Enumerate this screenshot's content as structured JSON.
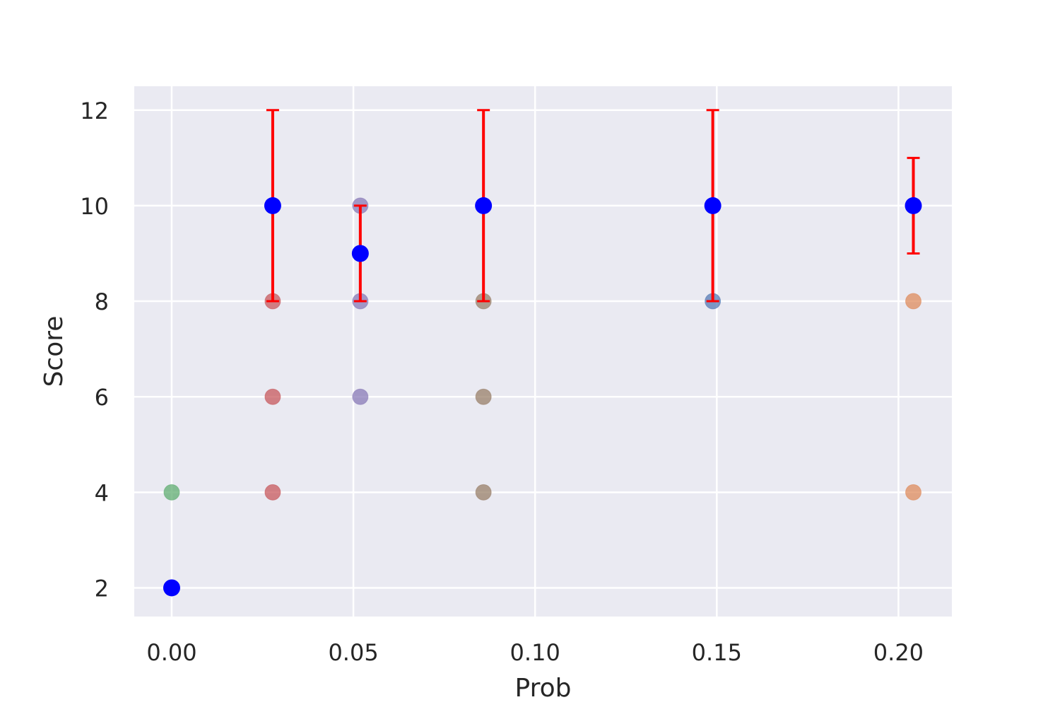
{
  "chart_data": {
    "type": "scatter",
    "title": "",
    "xlabel": "Prob",
    "ylabel": "Score",
    "xlim": [
      -0.0103,
      0.2147
    ],
    "ylim": [
      1.4,
      12.5
    ],
    "xticks": [
      0.0,
      0.05,
      0.1,
      0.15,
      0.2
    ],
    "xtick_labels": [
      "0.00",
      "0.05",
      "0.10",
      "0.15",
      "0.20"
    ],
    "yticks": [
      2,
      4,
      6,
      8,
      10,
      12
    ],
    "ytick_labels": [
      "2",
      "4",
      "6",
      "8",
      "10",
      "12"
    ],
    "grid": true,
    "legend": "none",
    "colors": {
      "background": "#eaeaf2",
      "grid": "#ffffff",
      "mean_marker": "#0000ff",
      "errorbar": "#ff0000"
    },
    "series": [
      {
        "color": "#55a868",
        "x": [
          0.0
        ],
        "y": [
          4
        ]
      },
      {
        "color": "#c44e52",
        "x": [
          0.0278,
          0.0278,
          0.0278
        ],
        "y": [
          4,
          6,
          8
        ]
      },
      {
        "color": "#8172b3",
        "x": [
          0.0519,
          0.0519,
          0.0519
        ],
        "y": [
          6,
          8,
          10
        ]
      },
      {
        "color": "#937860",
        "x": [
          0.0858,
          0.0858,
          0.0858
        ],
        "y": [
          4,
          6,
          8
        ]
      },
      {
        "color": "#4c72b0",
        "x": [
          0.1489
        ],
        "y": [
          8
        ]
      },
      {
        "color": "#dd8452",
        "x": [
          0.2041,
          0.2041
        ],
        "y": [
          4,
          8
        ]
      }
    ],
    "means": {
      "x": [
        0.0,
        0.0278,
        0.0519,
        0.0858,
        0.1489,
        0.2041
      ],
      "y": [
        2,
        10,
        9,
        10,
        10,
        10
      ],
      "err_low": [
        null,
        8,
        8,
        8,
        8,
        9
      ],
      "err_high": [
        null,
        12,
        10,
        12,
        12,
        11
      ]
    }
  }
}
